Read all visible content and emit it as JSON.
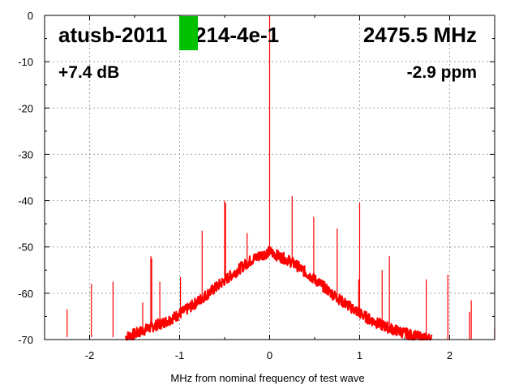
{
  "chart_data": {
    "type": "line",
    "title": "",
    "xlabel": "MHz from nominal frequency of test wave",
    "ylabel": "",
    "xlim": [
      -2.5,
      2.5
    ],
    "ylim": [
      -70,
      0
    ],
    "x_ticks": [
      -2,
      -1,
      0,
      1,
      2
    ],
    "y_ticks": [
      0,
      -10,
      -20,
      -30,
      -40,
      -50,
      -60,
      -70
    ],
    "grid": true,
    "legend": "none",
    "line_color": "#ff0000",
    "marker_color": "#00c000",
    "annotations": {
      "device": "atusb-2011",
      "device_suffix": "214-4e-1",
      "frequency": "2475.5 MHz",
      "gain": "+7.4 dB",
      "deviation": "-2.9 ppm"
    },
    "series": [
      {
        "noise_floor": [
          [
            -1.6,
            -69.5
          ],
          [
            -1.5,
            -68.8
          ],
          [
            -1.4,
            -68.0
          ],
          [
            -1.3,
            -67.2
          ],
          [
            -1.2,
            -66.5
          ],
          [
            -1.1,
            -65.6
          ],
          [
            -1.0,
            -64.5
          ],
          [
            -0.9,
            -63.2
          ],
          [
            -0.8,
            -61.8
          ],
          [
            -0.7,
            -60.3
          ],
          [
            -0.6,
            -58.8
          ],
          [
            -0.5,
            -57.2
          ],
          [
            -0.4,
            -55.7
          ],
          [
            -0.3,
            -54.2
          ],
          [
            -0.2,
            -52.8
          ],
          [
            -0.1,
            -51.8
          ],
          [
            -0.03,
            -51.3
          ],
          [
            0.0,
            -51.0
          ],
          [
            0.05,
            -51.5
          ],
          [
            0.1,
            -52.0
          ],
          [
            0.2,
            -52.8
          ],
          [
            0.3,
            -54.0
          ],
          [
            0.4,
            -55.5
          ],
          [
            0.5,
            -57.0
          ],
          [
            0.6,
            -58.6
          ],
          [
            0.7,
            -60.2
          ],
          [
            0.8,
            -61.7
          ],
          [
            0.9,
            -63.0
          ],
          [
            1.0,
            -64.3
          ],
          [
            1.1,
            -65.5
          ],
          [
            1.2,
            -66.5
          ],
          [
            1.3,
            -67.3
          ],
          [
            1.4,
            -68.0
          ],
          [
            1.5,
            -68.6
          ],
          [
            1.6,
            -69.2
          ],
          [
            1.7,
            -69.6
          ],
          [
            1.8,
            -69.9
          ]
        ],
        "spikes": [
          [
            -2.25,
            -63.5
          ],
          [
            -1.98,
            -58.0
          ],
          [
            -1.74,
            -57.5
          ],
          [
            -1.41,
            -62.0
          ],
          [
            -1.32,
            -52.0
          ],
          [
            -1.31,
            -52.5
          ],
          [
            -1.22,
            -57.5
          ],
          [
            -0.99,
            -56.5
          ],
          [
            -0.75,
            -46.5
          ],
          [
            -0.5,
            -40.0
          ],
          [
            -0.49,
            -40.5
          ],
          [
            -0.25,
            -47.0
          ],
          [
            0.0,
            0.0
          ],
          [
            0.25,
            -39.0
          ],
          [
            0.49,
            -43.5
          ],
          [
            0.75,
            -46.0
          ],
          [
            0.99,
            -57.0
          ],
          [
            1.0,
            -40.5
          ],
          [
            1.25,
            -55.0
          ],
          [
            1.33,
            -52.0
          ],
          [
            1.74,
            -57.0
          ],
          [
            1.98,
            -56.0
          ],
          [
            2.24,
            -61.5
          ],
          [
            2.22,
            -64.0
          ],
          [
            2.5,
            -67.5
          ]
        ]
      }
    ]
  }
}
